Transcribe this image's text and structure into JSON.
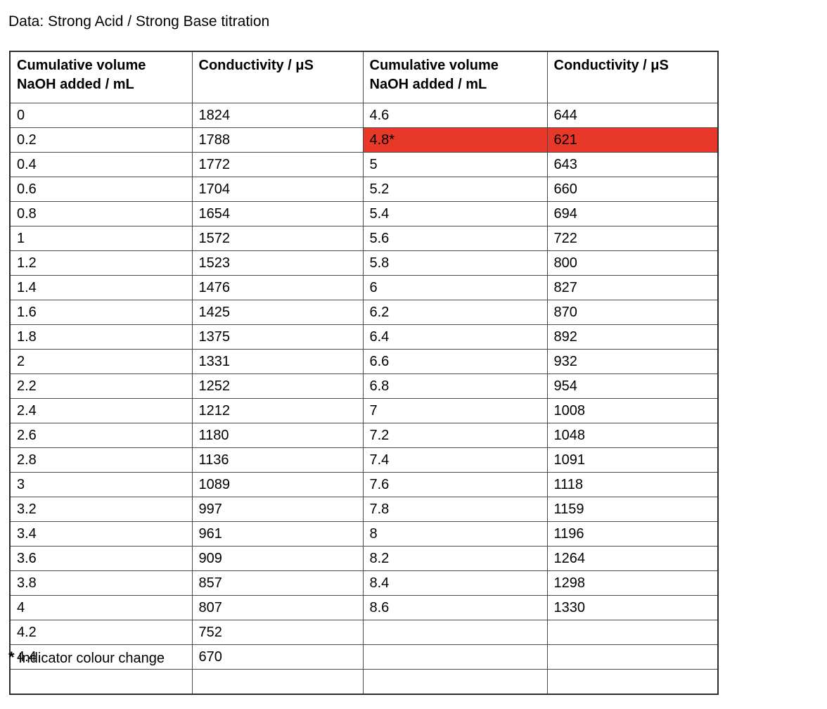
{
  "page": {
    "title": "Data: Strong Acid / Strong Base titration",
    "footnote_marker": "*",
    "footnote_text": " Indicator colour change"
  },
  "table": {
    "columns": [
      {
        "line1": "Cumulative volume",
        "line2": "NaOH added / mL"
      },
      {
        "line1": "Conductivity / μS",
        "line2": ""
      },
      {
        "line1": "Cumulative volume",
        "line2": "NaOH added / mL"
      },
      {
        "line1": "Conductivity / μS",
        "line2": ""
      }
    ],
    "highlight_color": "#e8382a",
    "highlight_row_index": 1,
    "left_rows": [
      [
        "0",
        "1824"
      ],
      [
        "0.2",
        "1788"
      ],
      [
        "0.4",
        "1772"
      ],
      [
        "0.6",
        "1704"
      ],
      [
        "0.8",
        "1654"
      ],
      [
        "1",
        "1572"
      ],
      [
        "1.2",
        "1523"
      ],
      [
        "1.4",
        "1476"
      ],
      [
        "1.6",
        "1425"
      ],
      [
        "1.8",
        "1375"
      ],
      [
        "2",
        "1331"
      ],
      [
        "2.2",
        "1252"
      ],
      [
        "2.4",
        "1212"
      ],
      [
        "2.6",
        "1180"
      ],
      [
        "2.8",
        "1136"
      ],
      [
        "3",
        "1089"
      ],
      [
        "3.2",
        "997"
      ],
      [
        "3.4",
        "961"
      ],
      [
        "3.6",
        "909"
      ],
      [
        "3.8",
        "857"
      ],
      [
        "4",
        "807"
      ],
      [
        "4.2",
        "752"
      ],
      [
        "4.4",
        "670"
      ],
      [
        "",
        ""
      ]
    ],
    "right_rows": [
      [
        "4.6",
        "644"
      ],
      [
        "4.8*",
        "621"
      ],
      [
        "5",
        "643"
      ],
      [
        "5.2",
        "660"
      ],
      [
        "5.4",
        "694"
      ],
      [
        "5.6",
        "722"
      ],
      [
        "5.8",
        "800"
      ],
      [
        "6",
        "827"
      ],
      [
        "6.2",
        "870"
      ],
      [
        "6.4",
        "892"
      ],
      [
        "6.6",
        "932"
      ],
      [
        "6.8",
        "954"
      ],
      [
        "7",
        "1008"
      ],
      [
        "7.2",
        "1048"
      ],
      [
        "7.4",
        "1091"
      ],
      [
        "7.6",
        "1118"
      ],
      [
        "7.8",
        "1159"
      ],
      [
        "8",
        "1196"
      ],
      [
        "8.2",
        "1264"
      ],
      [
        "8.4",
        "1298"
      ],
      [
        "8.6",
        "1330"
      ],
      [
        "",
        ""
      ],
      [
        "",
        ""
      ],
      [
        "",
        ""
      ]
    ]
  }
}
